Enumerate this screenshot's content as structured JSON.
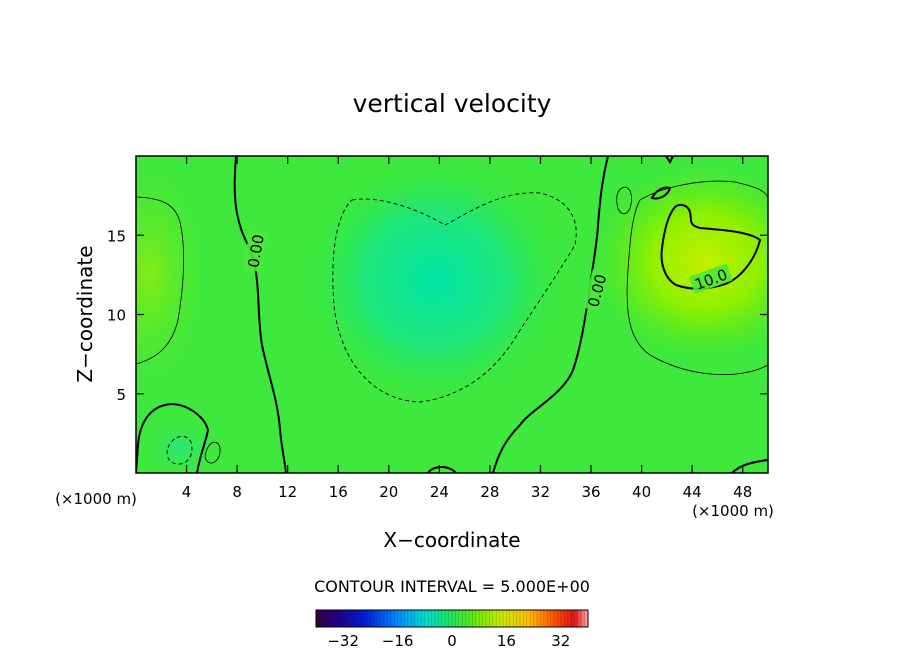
{
  "chart_data": {
    "type": "heatmap",
    "title": "vertical velocity",
    "xlabel": "X−coordinate",
    "ylabel": "Z−coordinate",
    "x_unit_left": "(×1000 m)",
    "x_unit_right": "(×1000 m)",
    "xlim": [
      0,
      50
    ],
    "ylim": [
      0,
      20
    ],
    "x_ticks": [
      4,
      8,
      12,
      16,
      20,
      24,
      28,
      32,
      36,
      40,
      44,
      48
    ],
    "y_ticks": [
      5,
      10,
      15
    ],
    "contour_interval_text": "CONTOUR INTERVAL = 5.000E+00",
    "contour_labels": [
      {
        "text": "0.00",
        "x": 9.5,
        "z": 14.0,
        "angle": -80
      },
      {
        "text": "0.00",
        "x": 36.5,
        "z": 11.5,
        "angle": -75
      },
      {
        "text": "10.0",
        "x": 45.5,
        "z": 12.2,
        "angle": -20
      }
    ],
    "colorbar": {
      "range": [
        -40,
        40
      ],
      "ticks": [
        -32,
        -16,
        0,
        16,
        32
      ],
      "tick_labels": [
        "−32",
        "−16",
        "0",
        "16",
        "32"
      ]
    },
    "features": [
      {
        "kind": "minimum",
        "x": 22,
        "z": 12,
        "value": -7
      },
      {
        "kind": "maximum",
        "x": 45,
        "z": 13,
        "value": 13
      },
      {
        "kind": "maximum",
        "x": 1,
        "z": 12,
        "value": 7
      }
    ]
  }
}
